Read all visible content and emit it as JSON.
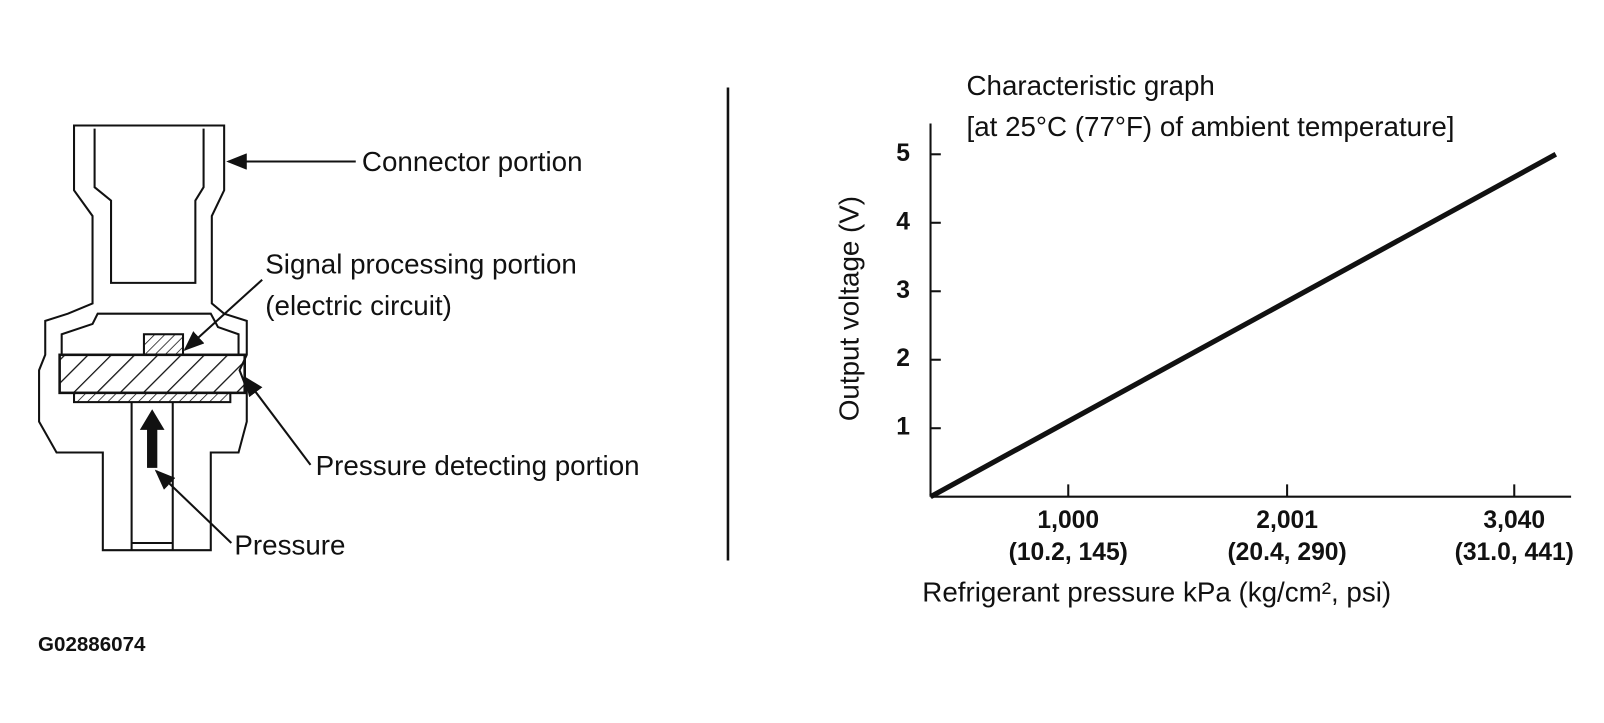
{
  "diagram": {
    "labels": [
      "Connector portion",
      "Signal processing portion",
      "(electric circuit)",
      "Pressure detecting portion",
      "Pressure"
    ]
  },
  "figure_id": "G02886074",
  "chart_data": {
    "type": "line",
    "title": "Characteristic graph",
    "subtitle": "[at 25°C (77°F) of ambient temperature]",
    "x_label": "Refrigerant pressure kPa (kg/cm², psi)",
    "y_label": "Output voltage (V)",
    "x": [
      370,
      3230
    ],
    "values": [
      0,
      5
    ],
    "color": "#111111",
    "xlim": [
      370,
      3300
    ],
    "ylim": [
      0,
      5.45
    ],
    "xticks": [
      {
        "value": 1000,
        "label": "1,000"
      },
      {
        "value": 2001,
        "label": "2,001"
      },
      {
        "value": 3040,
        "label": "3,040"
      }
    ],
    "xtick_sublabels": [
      "(10.2, 145)",
      "(20.4, 290)",
      "(31.0, 441)"
    ],
    "yticks": [
      1,
      2,
      3,
      4,
      5
    ]
  }
}
